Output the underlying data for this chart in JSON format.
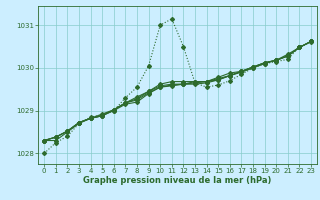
{
  "xlabel": "Graphe pression niveau de la mer (hPa)",
  "ylim": [
    1027.75,
    1031.45
  ],
  "xlim": [
    -0.5,
    23.5
  ],
  "bg_color": "#cceeff",
  "line_color": "#2d6b2d",
  "grid_color": "#88cccc",
  "series": [
    [
      1028.0,
      1028.25,
      1028.4,
      1028.7,
      1028.85,
      1028.9,
      1029.0,
      1029.3,
      1029.55,
      1030.05,
      1031.0,
      1031.15,
      1030.5,
      1029.65,
      1029.55,
      1029.6,
      1029.7,
      1029.85,
      1030.0,
      1030.1,
      1030.15,
      1030.2,
      1030.5,
      1030.6
    ],
    [
      1028.3,
      1028.3,
      1028.5,
      1028.7,
      1028.82,
      1028.88,
      1029.0,
      1029.15,
      1029.2,
      1029.4,
      1029.55,
      1029.6,
      1029.62,
      1029.62,
      1029.65,
      1029.72,
      1029.82,
      1029.9,
      1030.0,
      1030.1,
      1030.18,
      1030.28,
      1030.48,
      1030.62
    ],
    [
      1028.3,
      1028.38,
      1028.52,
      1028.72,
      1028.82,
      1028.88,
      1029.02,
      1029.18,
      1029.25,
      1029.42,
      1029.55,
      1029.58,
      1029.62,
      1029.68,
      1029.68,
      1029.72,
      1029.82,
      1029.92,
      1030.02,
      1030.12,
      1030.18,
      1030.28,
      1030.48,
      1030.62
    ],
    [
      1028.3,
      1028.38,
      1028.52,
      1028.72,
      1028.82,
      1028.88,
      1029.02,
      1029.18,
      1029.28,
      1029.45,
      1029.58,
      1029.62,
      1029.62,
      1029.65,
      1029.68,
      1029.75,
      1029.82,
      1029.92,
      1030.02,
      1030.12,
      1030.18,
      1030.28,
      1030.48,
      1030.62
    ],
    [
      1028.3,
      1028.38,
      1028.52,
      1028.72,
      1028.82,
      1028.92,
      1029.02,
      1029.18,
      1029.32,
      1029.45,
      1029.62,
      1029.68,
      1029.68,
      1029.68,
      1029.68,
      1029.78,
      1029.88,
      1029.92,
      1030.02,
      1030.12,
      1030.18,
      1030.32,
      1030.48,
      1030.62
    ]
  ],
  "yticks": [
    1028,
    1029,
    1030,
    1031
  ],
  "xticks": [
    0,
    1,
    2,
    3,
    4,
    5,
    6,
    7,
    8,
    9,
    10,
    11,
    12,
    13,
    14,
    15,
    16,
    17,
    18,
    19,
    20,
    21,
    22,
    23
  ],
  "markersize": 2.0,
  "linewidth": 0.8
}
